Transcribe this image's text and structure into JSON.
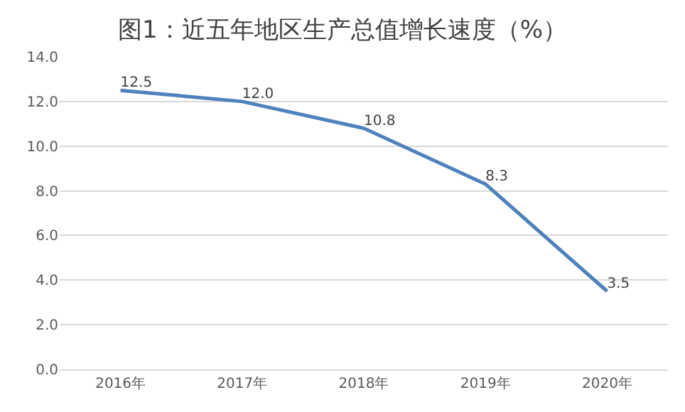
{
  "chart_data": {
    "type": "line",
    "title": "图1：近五年地区生产总值增长速度（%）",
    "categories": [
      "2016年",
      "2017年",
      "2018年",
      "2019年",
      "2020年"
    ],
    "series": [
      {
        "color": "#4f81bd",
        "values": [
          12.5,
          12.0,
          10.8,
          8.3,
          3.5
        ],
        "value_labels": [
          "12.5",
          "12.0",
          "10.8",
          "8.3",
          "3.5"
        ]
      }
    ],
    "ylim": [
      0,
      14
    ],
    "yticks": [
      {
        "value": 0,
        "label": "0.0"
      },
      {
        "value": 2,
        "label": "2.0"
      },
      {
        "value": 4,
        "label": "4.0"
      },
      {
        "value": 6,
        "label": "6.0"
      },
      {
        "value": 8,
        "label": "8.0"
      },
      {
        "value": 10,
        "label": "10.0"
      },
      {
        "value": 12,
        "label": "12.0"
      },
      {
        "value": 14,
        "label": "14.0"
      }
    ],
    "grid": "y",
    "marker": "none",
    "line_style": "solid"
  }
}
